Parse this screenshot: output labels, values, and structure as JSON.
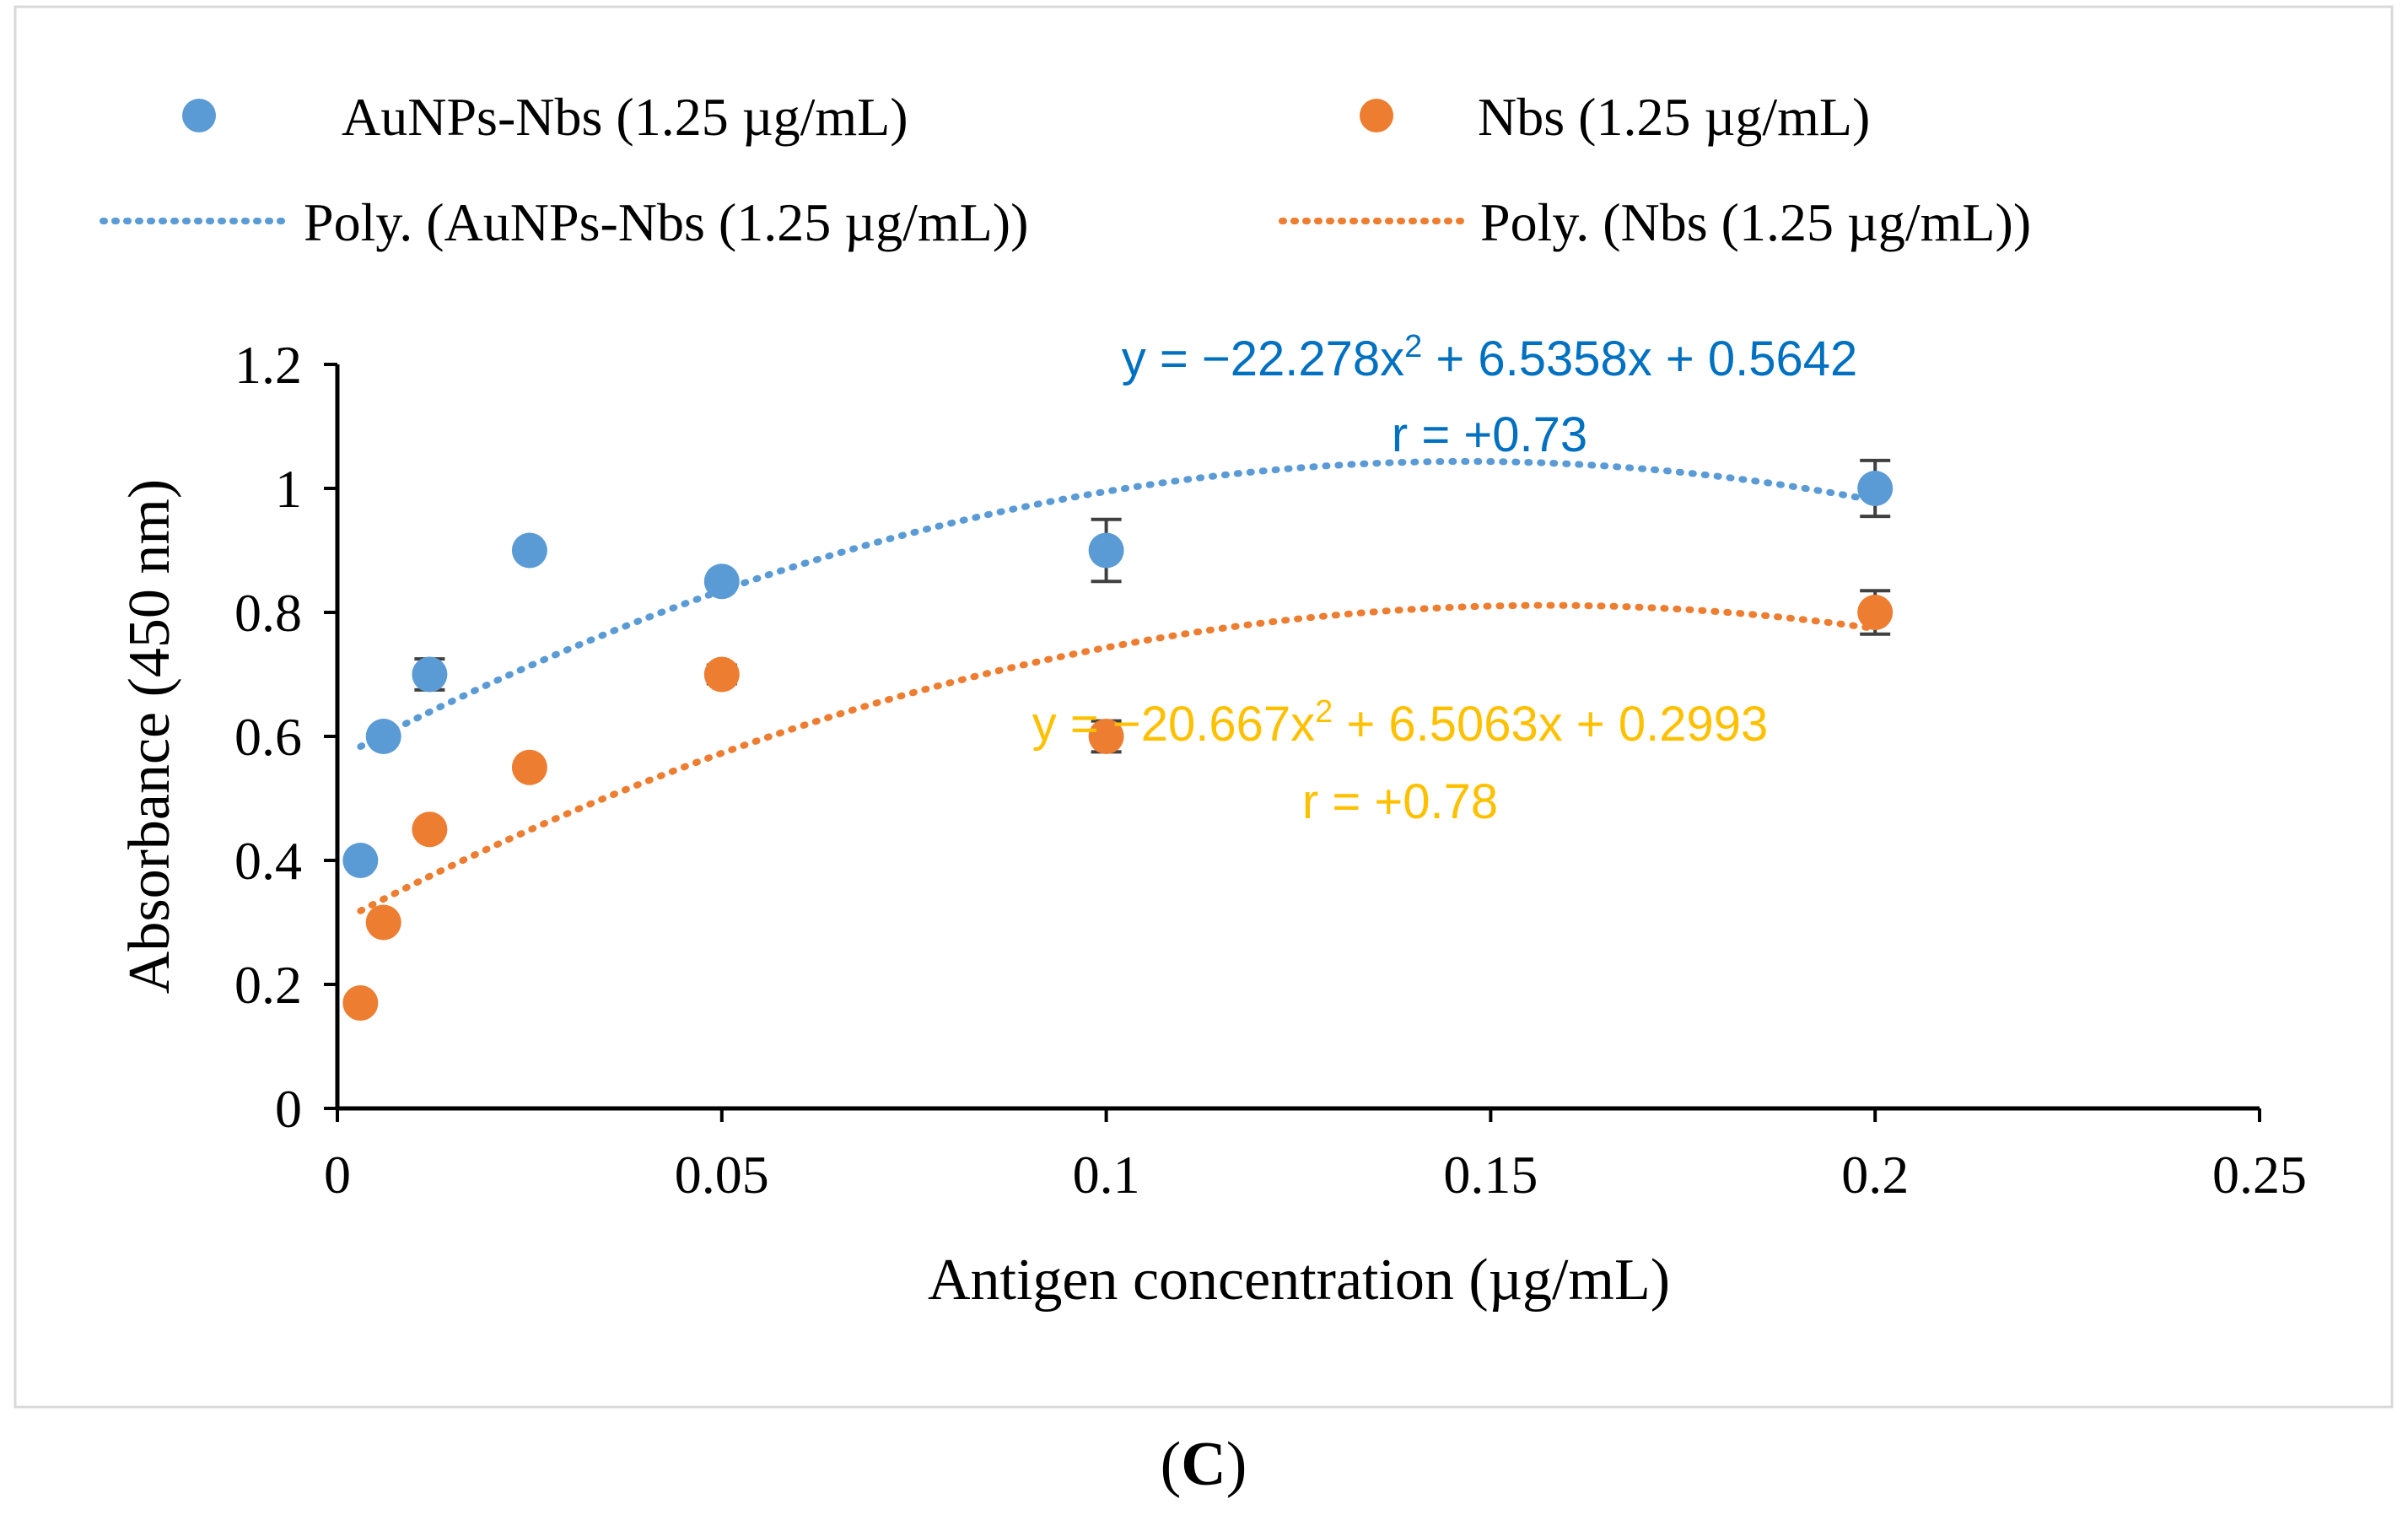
{
  "panel_label_parts": [
    "(",
    "C",
    ")"
  ],
  "colors": {
    "series1": "#5B9BD5",
    "series2": "#ED7D31",
    "eq1": "#0070C0",
    "eq2": "#FFC000",
    "axis": "#000000",
    "error_bar": "#404040",
    "frame": "#D9D9D9"
  },
  "chart_data": {
    "type": "scatter",
    "xlabel": "Antigen concentration (µg/mL)",
    "ylabel": "Absorbance (450 nm)",
    "xlim": [
      0,
      0.25
    ],
    "ylim": [
      0,
      1.2
    ],
    "xticks": [
      0,
      0.05,
      0.1,
      0.15,
      0.2,
      0.25
    ],
    "xtick_labels": [
      "0",
      "0.05",
      "0.1",
      "0.15",
      "0.2",
      "0.25"
    ],
    "yticks": [
      0,
      0.2,
      0.4,
      0.6,
      0.8,
      1,
      1.2
    ],
    "ytick_labels": [
      "0",
      "0.2",
      "0.4",
      "0.6",
      "0.8",
      "1",
      "1.2"
    ],
    "grid": false,
    "legend_position": "top",
    "series": [
      {
        "name": "AuNPs-Nbs (1.25 µg/mL)",
        "color": "#5B9BD5",
        "x": [
          0.003,
          0.006,
          0.012,
          0.025,
          0.05,
          0.1,
          0.2
        ],
        "y": [
          0.4,
          0.6,
          0.7,
          0.9,
          0.85,
          0.9,
          1.0
        ],
        "error": [
          0.0,
          0.0,
          0.025,
          0.0,
          0.0,
          0.05,
          0.045
        ]
      },
      {
        "name": "Nbs (1.25 µg/mL)",
        "color": "#ED7D31",
        "x": [
          0.003,
          0.006,
          0.012,
          0.025,
          0.05,
          0.1,
          0.2
        ],
        "y": [
          0.17,
          0.3,
          0.45,
          0.55,
          0.7,
          0.6,
          0.8
        ],
        "error": [
          0.0,
          0.0,
          0.0,
          0.0,
          0.015,
          0.025,
          0.035
        ]
      }
    ],
    "trendlines": [
      {
        "name": "Poly. (AuNPs-Nbs (1.25 µg/mL))",
        "color": "#5B9BD5",
        "coefficients": [
          -22.278,
          6.5358,
          0.5642
        ],
        "x_range": [
          0.003,
          0.2
        ],
        "equation_parts": [
          "y = −22.278x",
          "2",
          " + 6.5358x + 0.5642"
        ],
        "r_label": "r = +0.73",
        "label_color": "#0070C0"
      },
      {
        "name": "Poly. (Nbs (1.25 µg/mL))",
        "color": "#ED7D31",
        "coefficients": [
          -20.667,
          6.5063,
          0.2993
        ],
        "x_range": [
          0.003,
          0.2
        ],
        "equation_parts": [
          "y = −20.667x",
          "2",
          " + 6.5063x + 0.2993"
        ],
        "r_label": "r = +0.78",
        "label_color": "#FFC000"
      }
    ]
  }
}
